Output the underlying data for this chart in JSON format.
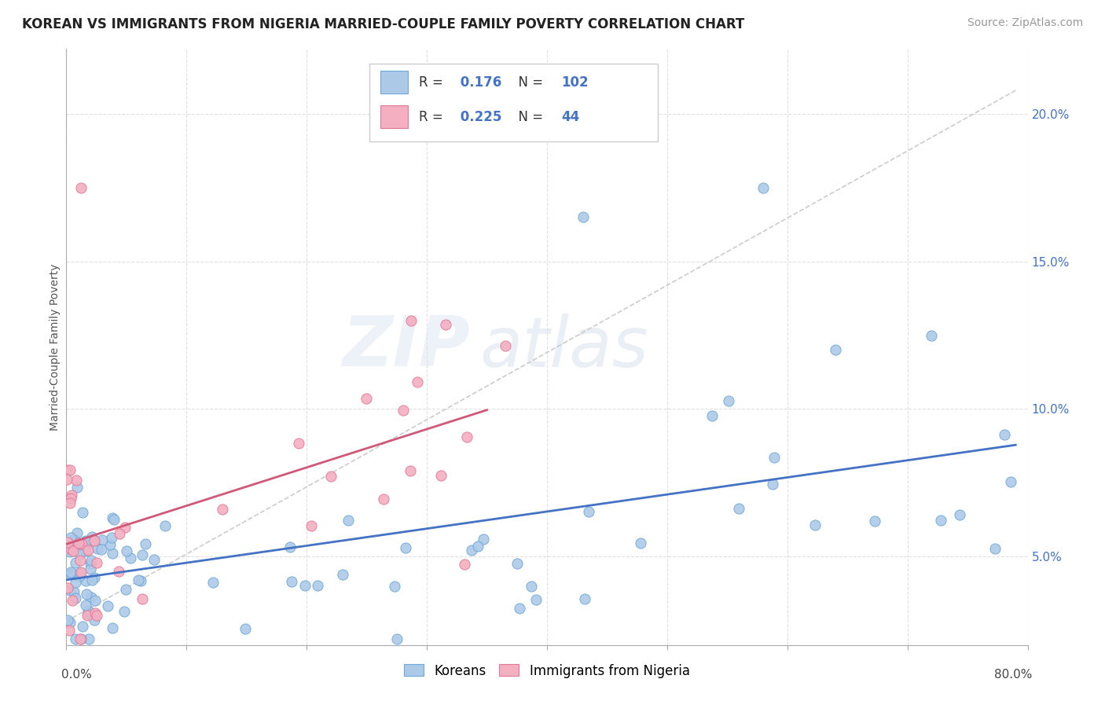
{
  "title": "KOREAN VS IMMIGRANTS FROM NIGERIA MARRIED-COUPLE FAMILY POVERTY CORRELATION CHART",
  "source": "Source: ZipAtlas.com",
  "ylabel": "Married-Couple Family Poverty",
  "korean_R": 0.176,
  "korean_N": 102,
  "nigeria_R": 0.225,
  "nigeria_N": 44,
  "korean_color": "#adc9e8",
  "korean_edge_color": "#6fa8d6",
  "korean_line_color": "#4472c4",
  "nigeria_color": "#f4afc0",
  "nigeria_edge_color": "#e07898",
  "nigeria_line_color": "#d05878",
  "ref_line_color": "#cccccc",
  "background_color": "#ffffff",
  "xlim": [
    0.0,
    0.8
  ],
  "ylim": [
    0.02,
    0.222
  ],
  "yticks": [
    0.05,
    0.1,
    0.15,
    0.2
  ],
  "ytick_labels": [
    "5.0%",
    "10.0%",
    "15.0%",
    "20.0%"
  ],
  "watermark_top": "ZIP",
  "watermark_bottom": "atlas",
  "title_fontsize": 12,
  "source_fontsize": 10,
  "legend_label_blue": "Koreans",
  "legend_label_pink": "Immigrants from Nigeria"
}
